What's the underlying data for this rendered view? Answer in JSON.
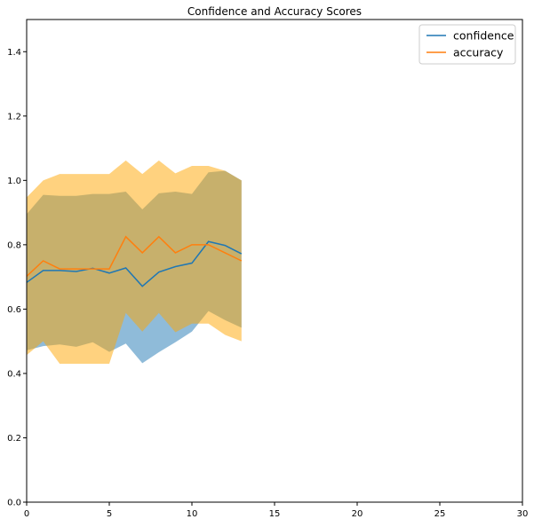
{
  "chart_data": {
    "type": "line",
    "title": "Confidence and Accuracy Scores",
    "xlabel": "",
    "ylabel": "",
    "xlim": [
      0,
      30
    ],
    "ylim": [
      0,
      1.5
    ],
    "xticks": [
      0,
      5,
      10,
      15,
      20,
      25,
      30
    ],
    "xtick_labels": [
      "0",
      "5",
      "10",
      "15",
      "20",
      "25",
      "30"
    ],
    "yticks": [
      0.0,
      0.2,
      0.4,
      0.6,
      0.8,
      1.0,
      1.2,
      1.4
    ],
    "ytick_labels": [
      "0.0",
      "0.2",
      "0.4",
      "0.6",
      "0.8",
      "1.0",
      "1.2",
      "1.4"
    ],
    "grid": false,
    "legend_position": "upper right",
    "x": [
      0,
      1,
      2,
      3,
      4,
      5,
      6,
      7,
      8,
      9,
      10,
      11,
      12,
      13
    ],
    "series": [
      {
        "name": "confidence",
        "color": "#1f77b4",
        "band_color": "#1f77b4",
        "band_opacity": 0.5,
        "values": [
          0.683,
          0.72,
          0.72,
          0.717,
          0.727,
          0.712,
          0.728,
          0.671,
          0.715,
          0.732,
          0.743,
          0.81,
          0.798,
          0.772
        ],
        "upper": [
          0.895,
          0.955,
          0.952,
          0.952,
          0.958,
          0.958,
          0.965,
          0.91,
          0.96,
          0.965,
          0.958,
          1.025,
          1.03,
          1.0
        ],
        "lower": [
          0.472,
          0.485,
          0.49,
          0.483,
          0.497,
          0.467,
          0.493,
          0.432,
          0.466,
          0.497,
          0.53,
          0.594,
          0.566,
          0.542
        ]
      },
      {
        "name": "accuracy",
        "color": "#ff7f0e",
        "band_color": "#ffa500",
        "band_opacity": 0.5,
        "values": [
          0.702,
          0.75,
          0.725,
          0.725,
          0.725,
          0.725,
          0.825,
          0.775,
          0.825,
          0.775,
          0.8,
          0.8,
          0.775,
          0.75
        ],
        "upper": [
          0.947,
          1.0,
          1.02,
          1.02,
          1.02,
          1.02,
          1.062,
          1.02,
          1.062,
          1.022,
          1.045,
          1.045,
          1.03,
          1.0
        ],
        "lower": [
          0.457,
          0.5,
          0.43,
          0.43,
          0.43,
          0.43,
          0.588,
          0.53,
          0.588,
          0.528,
          0.555,
          0.555,
          0.52,
          0.5
        ]
      }
    ]
  }
}
